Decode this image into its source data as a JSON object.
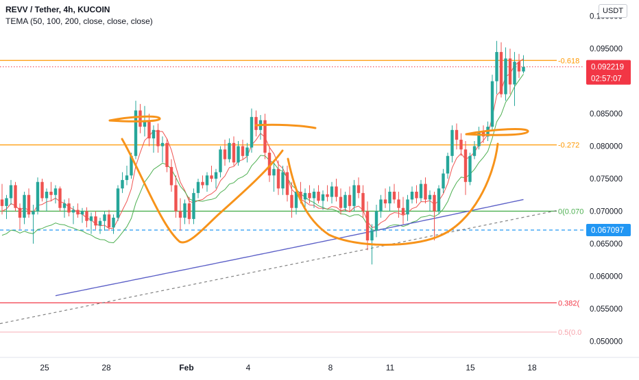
{
  "header": {
    "title": "REVV / Tether, 4h, KUCOIN",
    "indicator": "TEMA (50, 100, 200, close, close, close)"
  },
  "currency": "USDT",
  "colors": {
    "up": "#26a69a",
    "down": "#ef5350",
    "fib_orange": "#ff9800",
    "fib_red": "#f23645",
    "fib_green": "#4caf50",
    "fib_pink": "#f7a3ab",
    "tema50": "#ef5350",
    "tema100": "#4caf50",
    "tema200": "#5b5fc7",
    "drawing": "#f7931a",
    "last_price": "#f23645",
    "crosshair": "#2196f3",
    "trendline": "#808080"
  },
  "chart_data": {
    "type": "candlestick",
    "x_ticks": [
      "25",
      "28",
      "Feb",
      "4",
      "8",
      "11",
      "15",
      "18"
    ],
    "y_ticks": [
      "0.100000",
      "0.095000",
      "0.090000",
      "0.085000",
      "0.080000",
      "0.075000",
      "0.070000",
      "0.065000",
      "0.060000",
      "0.055000",
      "0.050000"
    ],
    "y_tick_values": [
      0.1,
      0.095,
      0.09,
      0.085,
      0.08,
      0.075,
      0.07,
      0.065,
      0.06,
      0.055,
      0.05
    ],
    "ylim": [
      0.0475,
      0.1025
    ],
    "fib_levels": [
      {
        "label": "-0.618",
        "value": 0.0932,
        "color": "fib_orange"
      },
      {
        "label": "-0.272",
        "value": 0.0802,
        "color": "fib_orange"
      },
      {
        "label": "0(0.070",
        "value": 0.07,
        "color": "fib_green"
      },
      {
        "label": "0.382(",
        "value": 0.0559,
        "color": "fib_red"
      },
      {
        "label": "0.5(0.0",
        "value": 0.0514,
        "color": "fib_pink"
      }
    ],
    "last_price": {
      "value": "0.092219",
      "countdown": "02:57:07"
    },
    "crosshair_price": "0.067097",
    "crosshair_value": 0.067097,
    "candles": [
      [
        0.0718,
        0.0742,
        0.0695,
        0.0708
      ],
      [
        0.0708,
        0.0725,
        0.0688,
        0.072
      ],
      [
        0.072,
        0.0748,
        0.071,
        0.074
      ],
      [
        0.074,
        0.0745,
        0.07,
        0.0705
      ],
      [
        0.0705,
        0.0712,
        0.0672,
        0.069
      ],
      [
        0.069,
        0.073,
        0.068,
        0.0725
      ],
      [
        0.0725,
        0.0735,
        0.069,
        0.0695
      ],
      [
        0.0695,
        0.071,
        0.065,
        0.07
      ],
      [
        0.07,
        0.0752,
        0.0695,
        0.0745
      ],
      [
        0.0745,
        0.075,
        0.0715,
        0.072
      ],
      [
        0.072,
        0.0735,
        0.07,
        0.073
      ],
      [
        0.073,
        0.0745,
        0.0715,
        0.0725
      ],
      [
        0.0725,
        0.074,
        0.0712,
        0.0735
      ],
      [
        0.0735,
        0.0738,
        0.07,
        0.0705
      ],
      [
        0.0705,
        0.0718,
        0.069,
        0.0712
      ],
      [
        0.0712,
        0.072,
        0.0692,
        0.0698
      ],
      [
        0.0698,
        0.0708,
        0.068,
        0.0702
      ],
      [
        0.0702,
        0.0712,
        0.069,
        0.0695
      ],
      [
        0.0695,
        0.0705,
        0.0682,
        0.07
      ],
      [
        0.07,
        0.0706,
        0.0675,
        0.0685
      ],
      [
        0.0685,
        0.0698,
        0.0665,
        0.0692
      ],
      [
        0.0692,
        0.07,
        0.0672,
        0.0678
      ],
      [
        0.0678,
        0.069,
        0.0665,
        0.0685
      ],
      [
        0.0685,
        0.07,
        0.067,
        0.0695
      ],
      [
        0.0695,
        0.0702,
        0.067,
        0.0675
      ],
      [
        0.0675,
        0.0695,
        0.0665,
        0.069
      ],
      [
        0.069,
        0.074,
        0.0685,
        0.0735
      ],
      [
        0.0735,
        0.076,
        0.0728,
        0.0748
      ],
      [
        0.0748,
        0.077,
        0.074,
        0.0755
      ],
      [
        0.0755,
        0.079,
        0.075,
        0.0785
      ],
      [
        0.0785,
        0.087,
        0.078,
        0.0855
      ],
      [
        0.0855,
        0.0865,
        0.082,
        0.083
      ],
      [
        0.083,
        0.0862,
        0.0815,
        0.084
      ],
      [
        0.084,
        0.085,
        0.08,
        0.0812
      ],
      [
        0.0812,
        0.0832,
        0.079,
        0.0825
      ],
      [
        0.0825,
        0.0835,
        0.079,
        0.08
      ],
      [
        0.08,
        0.0815,
        0.0775,
        0.0805
      ],
      [
        0.0805,
        0.0812,
        0.076,
        0.0768
      ],
      [
        0.0768,
        0.078,
        0.073,
        0.074
      ],
      [
        0.074,
        0.0755,
        0.069,
        0.07
      ],
      [
        0.07,
        0.072,
        0.067,
        0.069
      ],
      [
        0.069,
        0.0718,
        0.068,
        0.0712
      ],
      [
        0.0712,
        0.0722,
        0.068,
        0.0688
      ],
      [
        0.0688,
        0.0735,
        0.068,
        0.0728
      ],
      [
        0.0728,
        0.075,
        0.072,
        0.0745
      ],
      [
        0.0745,
        0.0755,
        0.0735,
        0.074
      ],
      [
        0.074,
        0.076,
        0.073,
        0.0755
      ],
      [
        0.0755,
        0.077,
        0.0745,
        0.075
      ],
      [
        0.075,
        0.0765,
        0.0735,
        0.076
      ],
      [
        0.076,
        0.08,
        0.0752,
        0.0795
      ],
      [
        0.0795,
        0.081,
        0.077,
        0.078
      ],
      [
        0.078,
        0.0812,
        0.0775,
        0.0805
      ],
      [
        0.0805,
        0.0815,
        0.077,
        0.0775
      ],
      [
        0.0775,
        0.0808,
        0.077,
        0.08
      ],
      [
        0.08,
        0.081,
        0.078,
        0.0785
      ],
      [
        0.0785,
        0.0805,
        0.0775,
        0.0798
      ],
      [
        0.0798,
        0.0858,
        0.079,
        0.0845
      ],
      [
        0.0845,
        0.0855,
        0.0815,
        0.0825
      ],
      [
        0.0825,
        0.0848,
        0.081,
        0.084
      ],
      [
        0.084,
        0.085,
        0.078,
        0.079
      ],
      [
        0.079,
        0.08,
        0.0745,
        0.0755
      ],
      [
        0.0755,
        0.0775,
        0.073,
        0.0765
      ],
      [
        0.0765,
        0.0778,
        0.0725,
        0.0735
      ],
      [
        0.0735,
        0.077,
        0.0725,
        0.076
      ],
      [
        0.076,
        0.077,
        0.0715,
        0.0725
      ],
      [
        0.0725,
        0.0745,
        0.069,
        0.0705
      ],
      [
        0.0705,
        0.0738,
        0.0695,
        0.073
      ],
      [
        0.073,
        0.0745,
        0.0712,
        0.0718
      ],
      [
        0.0718,
        0.0735,
        0.07,
        0.0728
      ],
      [
        0.0728,
        0.074,
        0.0712,
        0.072
      ],
      [
        0.072,
        0.0735,
        0.0705,
        0.073
      ],
      [
        0.073,
        0.074,
        0.0712,
        0.0716
      ],
      [
        0.0716,
        0.0732,
        0.0702,
        0.0726
      ],
      [
        0.0726,
        0.074,
        0.0715,
        0.0722
      ],
      [
        0.0722,
        0.0745,
        0.0712,
        0.0738
      ],
      [
        0.0738,
        0.075,
        0.0715,
        0.0722
      ],
      [
        0.0722,
        0.0735,
        0.0695,
        0.0705
      ],
      [
        0.0705,
        0.073,
        0.07,
        0.0725
      ],
      [
        0.0725,
        0.0738,
        0.07,
        0.0708
      ],
      [
        0.0708,
        0.0748,
        0.07,
        0.074
      ],
      [
        0.074,
        0.0752,
        0.072,
        0.0728
      ],
      [
        0.0728,
        0.074,
        0.069,
        0.07
      ],
      [
        0.07,
        0.0715,
        0.064,
        0.0655
      ],
      [
        0.0655,
        0.068,
        0.0618,
        0.067
      ],
      [
        0.067,
        0.071,
        0.066,
        0.07
      ],
      [
        0.07,
        0.0725,
        0.069,
        0.0718
      ],
      [
        0.0718,
        0.0735,
        0.0705,
        0.0712
      ],
      [
        0.0712,
        0.0738,
        0.07,
        0.073
      ],
      [
        0.073,
        0.0742,
        0.0712,
        0.0718
      ],
      [
        0.0718,
        0.073,
        0.069,
        0.0705
      ],
      [
        0.0705,
        0.0722,
        0.068,
        0.0695
      ],
      [
        0.0695,
        0.0725,
        0.0685,
        0.0718
      ],
      [
        0.0718,
        0.0738,
        0.0712,
        0.073
      ],
      [
        0.073,
        0.074,
        0.0712,
        0.072
      ],
      [
        0.072,
        0.0748,
        0.0715,
        0.0742
      ],
      [
        0.0742,
        0.0752,
        0.0712,
        0.0718
      ],
      [
        0.0718,
        0.0732,
        0.07,
        0.0725
      ],
      [
        0.0725,
        0.073,
        0.0655,
        0.07
      ],
      [
        0.07,
        0.074,
        0.0695,
        0.0735
      ],
      [
        0.0735,
        0.0765,
        0.0728,
        0.0758
      ],
      [
        0.0758,
        0.079,
        0.075,
        0.0785
      ],
      [
        0.0785,
        0.0832,
        0.0775,
        0.0825
      ],
      [
        0.0825,
        0.0835,
        0.0795,
        0.081
      ],
      [
        0.081,
        0.082,
        0.0785,
        0.0795
      ],
      [
        0.0795,
        0.0808,
        0.0725,
        0.0745
      ],
      [
        0.0745,
        0.079,
        0.074,
        0.0785
      ],
      [
        0.0785,
        0.0808,
        0.078,
        0.08
      ],
      [
        0.08,
        0.083,
        0.0795,
        0.0822
      ],
      [
        0.0822,
        0.0832,
        0.0805,
        0.0815
      ],
      [
        0.0815,
        0.0838,
        0.0808,
        0.083
      ],
      [
        0.083,
        0.091,
        0.0825,
        0.09
      ],
      [
        0.09,
        0.0962,
        0.088,
        0.0945
      ],
      [
        0.0945,
        0.096,
        0.0875,
        0.088
      ],
      [
        0.088,
        0.0952,
        0.087,
        0.0935
      ],
      [
        0.0935,
        0.095,
        0.088,
        0.0895
      ],
      [
        0.0895,
        0.0945,
        0.0862,
        0.093
      ],
      [
        0.093,
        0.0942,
        0.0905,
        0.0915
      ],
      [
        0.0915,
        0.094,
        0.0912,
        0.0922
      ]
    ]
  }
}
